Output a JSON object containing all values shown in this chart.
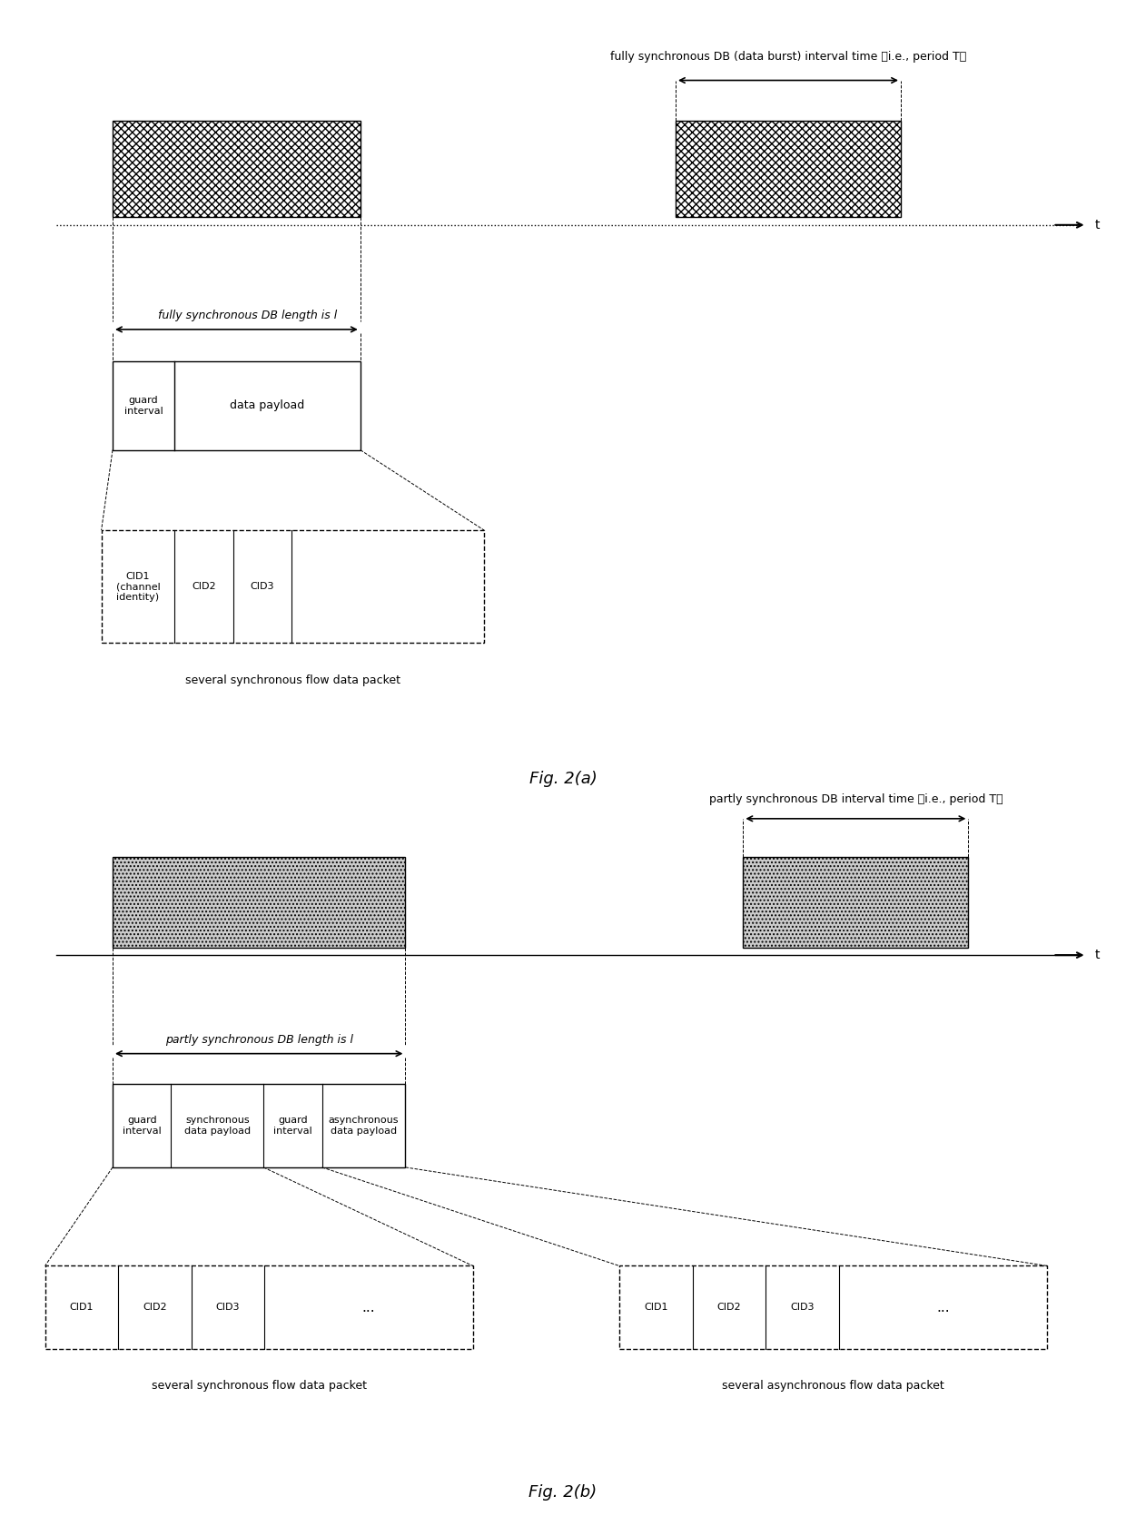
{
  "fig_a_title": "Fig. 2(a)",
  "fig_b_title": "Fig. 2(b)",
  "fig_a_annotation": "fully synchronous DB (data burst) interval time （i.e., period T）",
  "fig_b_annotation": "partly synchronous DB interval time （i.e., period T）",
  "fig_a_length_label": "fully synchronous DB length is l",
  "fig_b_length_label": "partly synchronous DB length is l",
  "guard_interval": "guard\ninterval",
  "data_payload": "data payload",
  "sync_data_payload": "synchronous\ndata payload",
  "async_data_payload": "asynchronous\ndata payload",
  "cid1": "CID1",
  "cid2": "CID2",
  "cid3": "CID3",
  "cid_ellipsis": "...",
  "cid1_full": "CID1\n(channel\nidentity)",
  "t_label": "t",
  "several_sync": "several synchronous flow data packet",
  "several_async": "several asynchronous flow data packet",
  "bg_color": "#ffffff",
  "line_color": "#000000",
  "text_color": "#000000",
  "font_size": 9,
  "title_font_size": 13
}
